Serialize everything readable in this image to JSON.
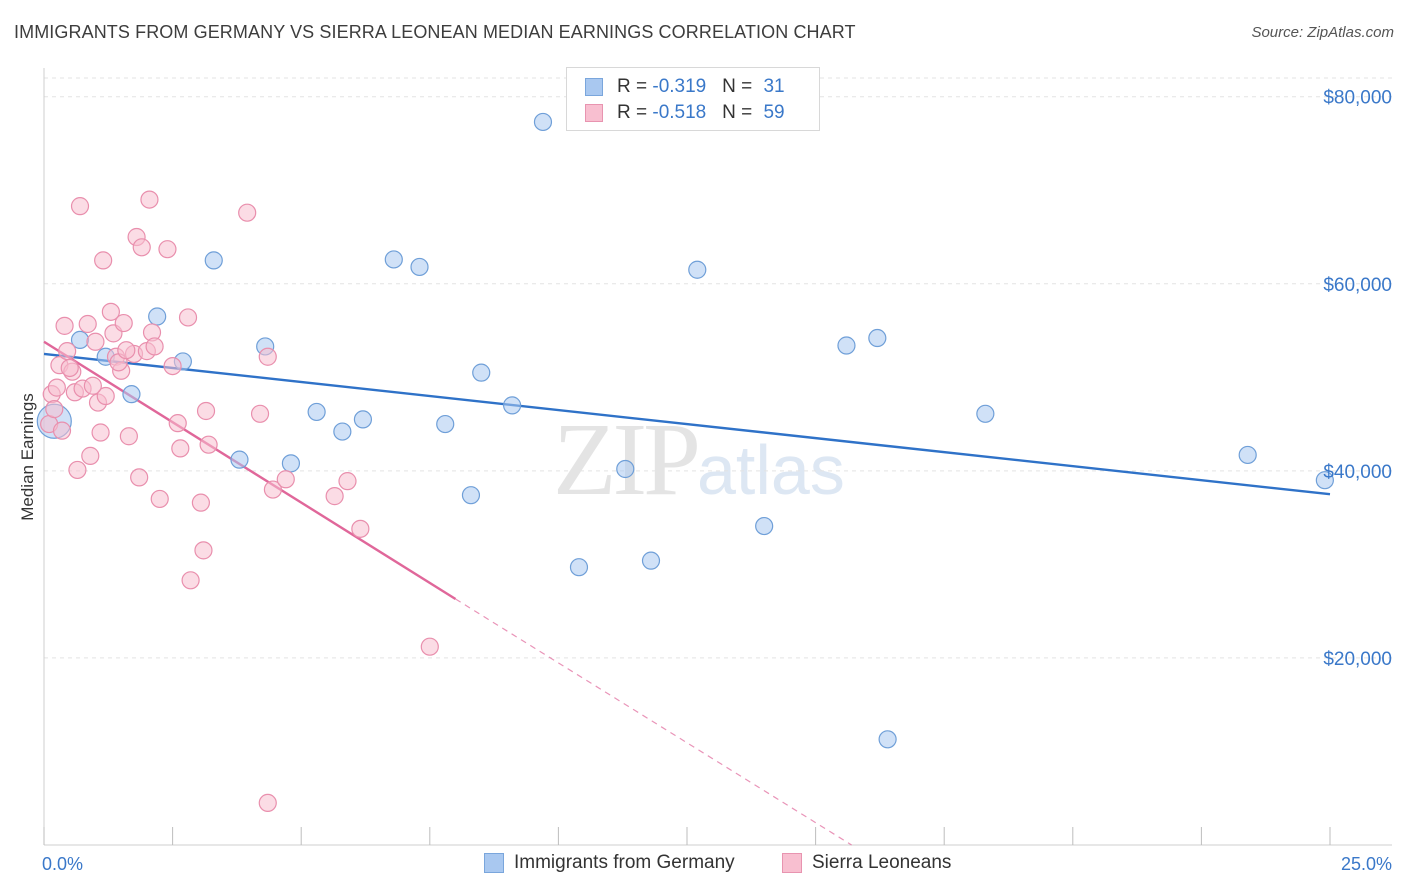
{
  "title": "IMMIGRANTS FROM GERMANY VS SIERRA LEONEAN MEDIAN EARNINGS CORRELATION CHART",
  "source": "Source: ZipAtlas.com",
  "watermark": {
    "zip": "ZIP",
    "atlas": "atlas"
  },
  "legend": [
    {
      "r_label": "R = ",
      "r_value": "-0.319",
      "n_label": "N = ",
      "n_value": "31",
      "color": "#a9c8f0",
      "border": "#7aa6dc"
    },
    {
      "r_label": "R = ",
      "r_value": "-0.518",
      "n_label": "N = ",
      "n_value": "59",
      "color": "#f8bfd0",
      "border": "#e894b0"
    }
  ],
  "chart_data": {
    "type": "scatter",
    "title": "IMMIGRANTS FROM GERMANY VS SIERRA LEONEAN MEDIAN EARNINGS CORRELATION CHART",
    "xlabel": "",
    "ylabel": "Median Earnings",
    "xlim": [
      0,
      25
    ],
    "ylim": [
      0,
      82000
    ],
    "x_tick_labels": [
      "0.0%",
      "25.0%"
    ],
    "y_ticks": [
      20000,
      40000,
      60000,
      80000
    ],
    "y_tick_labels": [
      "$20,000",
      "$40,000",
      "$60,000",
      "$80,000"
    ],
    "grid": true,
    "legend_position": "top-center",
    "series": [
      {
        "name": "Immigrants from Germany",
        "color": "#a9c8f0",
        "stroke": "#6f9fd8",
        "line_color": "#2f72c8",
        "trend": {
          "x0": 0,
          "y0": 52500,
          "x1": 25,
          "y1": 37500,
          "dashed_to": null
        },
        "points": [
          [
            0.2,
            45300,
            "big"
          ],
          [
            0.7,
            54000
          ],
          [
            1.2,
            52200
          ],
          [
            1.7,
            48200
          ],
          [
            2.2,
            56500
          ],
          [
            2.7,
            51700
          ],
          [
            3.3,
            62500
          ],
          [
            3.8,
            41200
          ],
          [
            4.3,
            53300
          ],
          [
            4.8,
            40800
          ],
          [
            5.3,
            46300
          ],
          [
            5.8,
            44200
          ],
          [
            6.2,
            45500
          ],
          [
            6.8,
            62600
          ],
          [
            7.3,
            61800
          ],
          [
            7.8,
            45000
          ],
          [
            8.3,
            37400
          ],
          [
            8.5,
            50500
          ],
          [
            9.1,
            47000
          ],
          [
            9.7,
            77300
          ],
          [
            10.4,
            29700
          ],
          [
            11.3,
            40200
          ],
          [
            11.8,
            30400
          ],
          [
            12.7,
            61500
          ],
          [
            14.0,
            34100
          ],
          [
            15.6,
            53400
          ],
          [
            16.2,
            54200
          ],
          [
            16.4,
            11300
          ],
          [
            18.3,
            46100
          ],
          [
            23.4,
            41700
          ],
          [
            24.9,
            39000
          ]
        ]
      },
      {
        "name": "Sierra Leoneans",
        "color": "#f8bfd0",
        "stroke": "#e98fad",
        "line_color": "#e0679a",
        "trend": {
          "x0": 0,
          "y0": 53800,
          "x1": 8.0,
          "y1": 26300,
          "dashed_to": [
            15.7,
            0
          ]
        },
        "points": [
          [
            0.1,
            45000
          ],
          [
            0.15,
            48200
          ],
          [
            0.25,
            48900
          ],
          [
            0.3,
            51300
          ],
          [
            0.35,
            44300
          ],
          [
            0.45,
            52800
          ],
          [
            0.55,
            50600
          ],
          [
            0.6,
            48400
          ],
          [
            0.65,
            40100
          ],
          [
            0.7,
            68300
          ],
          [
            0.75,
            48800
          ],
          [
            0.85,
            55700
          ],
          [
            0.9,
            41600
          ],
          [
            1.0,
            53800
          ],
          [
            1.05,
            47300
          ],
          [
            1.1,
            44100
          ],
          [
            1.15,
            62500
          ],
          [
            1.2,
            48000
          ],
          [
            1.3,
            57000
          ],
          [
            1.35,
            54700
          ],
          [
            1.4,
            52200
          ],
          [
            1.5,
            50700
          ],
          [
            1.55,
            55800
          ],
          [
            1.65,
            43700
          ],
          [
            1.75,
            52500
          ],
          [
            1.85,
            39300
          ],
          [
            1.8,
            65000
          ],
          [
            1.9,
            63900
          ],
          [
            2.0,
            52800
          ],
          [
            2.05,
            69000
          ],
          [
            2.1,
            54800
          ],
          [
            2.15,
            53300
          ],
          [
            2.25,
            37000
          ],
          [
            2.4,
            63700
          ],
          [
            2.6,
            45100
          ],
          [
            2.65,
            42400
          ],
          [
            2.8,
            56400
          ],
          [
            2.85,
            28300
          ],
          [
            3.2,
            42800
          ],
          [
            3.95,
            67600
          ],
          [
            3.05,
            36600
          ],
          [
            3.1,
            31500
          ],
          [
            3.15,
            46400
          ],
          [
            4.2,
            46100
          ],
          [
            4.35,
            52200
          ],
          [
            4.35,
            4500
          ],
          [
            4.45,
            38000
          ],
          [
            4.7,
            39100
          ],
          [
            5.65,
            37300
          ],
          [
            5.9,
            38900
          ],
          [
            6.15,
            33800
          ],
          [
            7.5,
            21200
          ],
          [
            0.5,
            51000
          ],
          [
            1.45,
            51600
          ],
          [
            0.95,
            49100
          ],
          [
            2.5,
            51200
          ],
          [
            0.2,
            46600
          ],
          [
            1.6,
            52900
          ],
          [
            0.4,
            55500
          ]
        ]
      }
    ]
  }
}
